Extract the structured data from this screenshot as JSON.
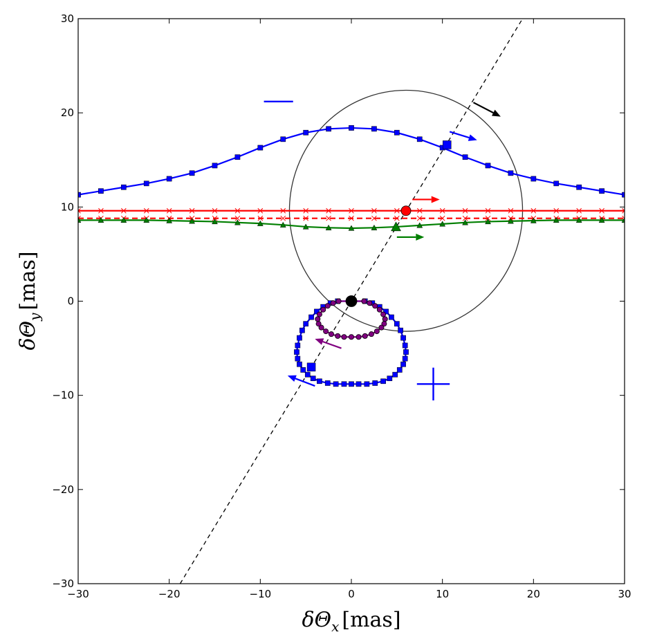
{
  "chart_data": {
    "type": "scatter",
    "title": "",
    "xlabel": "δΘ_x [mas]",
    "ylabel": "δΘ_y [mas]",
    "xlim": [
      -30,
      30
    ],
    "ylim": [
      -30,
      30
    ],
    "xticks": [
      -30,
      -20,
      -10,
      0,
      10,
      20,
      30
    ],
    "yticks": [
      -30,
      -20,
      -10,
      0,
      10,
      20,
      30
    ],
    "tick_labels_x": [
      "−30",
      "−20",
      "−10",
      "0",
      "10",
      "20",
      "30"
    ],
    "tick_labels_y": [
      "−30",
      "−20",
      "−10",
      "0",
      "10",
      "20",
      "30"
    ],
    "xlabel_text": {
      "main": "δΘ",
      "sub": "x",
      "unit": "[mas]"
    },
    "ylabel_text": {
      "main": "δΘ",
      "sub": "y",
      "unit": "[mas]"
    },
    "grid": false,
    "colors": {
      "blue": "#0000ff",
      "red": "#ff0000",
      "green": "#007f00",
      "purple": "#800080",
      "black": "#000000",
      "circle": "#333333"
    },
    "series": [
      {
        "key": "blue_upper",
        "color": "#0000ff",
        "marker": "square",
        "line": "solid",
        "x": [
          -30,
          -27.5,
          -25,
          -22.5,
          -20,
          -17.5,
          -15,
          -12.5,
          -10,
          -7.5,
          -5,
          -2.5,
          0,
          2.5,
          5,
          7.5,
          10,
          12.5,
          15,
          17.5,
          20,
          22.5,
          25,
          27.5,
          30
        ],
        "y": [
          11.3,
          11.7,
          12.1,
          12.5,
          13.0,
          13.6,
          14.4,
          15.3,
          16.3,
          17.2,
          17.9,
          18.3,
          18.4,
          18.3,
          17.9,
          17.2,
          16.3,
          15.3,
          14.4,
          13.6,
          13.0,
          12.5,
          12.1,
          11.7,
          11.3
        ]
      },
      {
        "key": "red_solid",
        "color": "#ff0000",
        "marker": "x",
        "line": "solid",
        "x": [
          -30,
          -27.5,
          -25,
          -22.5,
          -20,
          -17.5,
          -15,
          -12.5,
          -10,
          -7.5,
          -5,
          -2.5,
          0,
          2.5,
          5,
          7.5,
          10,
          12.5,
          15,
          17.5,
          20,
          22.5,
          25,
          27.5,
          30
        ],
        "y": [
          9.6,
          9.6,
          9.6,
          9.6,
          9.6,
          9.6,
          9.6,
          9.6,
          9.6,
          9.6,
          9.6,
          9.6,
          9.6,
          9.6,
          9.6,
          9.6,
          9.6,
          9.6,
          9.6,
          9.6,
          9.6,
          9.6,
          9.6,
          9.6,
          9.6
        ]
      },
      {
        "key": "red_dashed",
        "color": "#ff0000",
        "marker": "x",
        "line": "dashed",
        "x": [
          -30,
          -27.5,
          -25,
          -22.5,
          -20,
          -17.5,
          -15,
          -12.5,
          -10,
          -7.5,
          -5,
          -2.5,
          0,
          2.5,
          5,
          7.5,
          10,
          12.5,
          15,
          17.5,
          20,
          22.5,
          25,
          27.5,
          30
        ],
        "y": [
          8.8,
          8.8,
          8.8,
          8.8,
          8.8,
          8.8,
          8.8,
          8.8,
          8.8,
          8.8,
          8.8,
          8.8,
          8.8,
          8.8,
          8.8,
          8.8,
          8.8,
          8.8,
          8.8,
          8.8,
          8.8,
          8.8,
          8.8,
          8.8,
          8.8
        ]
      },
      {
        "key": "green",
        "color": "#007f00",
        "marker": "triangle",
        "line": "solid",
        "x": [
          -30,
          -27.5,
          -25,
          -22.5,
          -20,
          -17.5,
          -15,
          -12.5,
          -10,
          -7.5,
          -5,
          -2.5,
          0,
          2.5,
          5,
          7.5,
          10,
          12.5,
          15,
          17.5,
          20,
          22.5,
          25,
          27.5,
          30
        ],
        "y": [
          8.6,
          8.6,
          8.6,
          8.6,
          8.55,
          8.5,
          8.45,
          8.35,
          8.25,
          8.1,
          7.9,
          7.8,
          7.75,
          7.8,
          7.9,
          8.05,
          8.2,
          8.35,
          8.45,
          8.5,
          8.55,
          8.6,
          8.6,
          8.6,
          8.6
        ]
      },
      {
        "key": "blue_lower",
        "color": "#0000ff",
        "marker": "square",
        "line": "solid",
        "closed": true,
        "x": [
          1.5,
          2.3,
          3.1,
          3.8,
          4.4,
          5.0,
          5.4,
          5.7,
          5.9,
          6.0,
          5.9,
          5.7,
          5.3,
          4.8,
          4.2,
          3.5,
          2.6,
          1.7,
          0.8,
          0.0,
          -0.8,
          -1.7,
          -2.6,
          -3.5,
          -4.2,
          -4.8,
          -5.3,
          -5.7,
          -5.9,
          -6.0,
          -5.9,
          -5.7,
          -5.4,
          -5.0,
          -4.4,
          -3.8,
          -3.1,
          -2.3,
          -1.5
        ],
        "y": [
          0.0,
          -0.2,
          -0.6,
          -1.1,
          -1.7,
          -2.4,
          -3.1,
          -3.9,
          -4.7,
          -5.4,
          -6.1,
          -6.7,
          -7.3,
          -7.8,
          -8.2,
          -8.5,
          -8.7,
          -8.8,
          -8.8,
          -8.8,
          -8.8,
          -8.8,
          -8.7,
          -8.5,
          -8.2,
          -7.8,
          -7.3,
          -6.7,
          -6.1,
          -5.4,
          -4.7,
          -3.9,
          -3.1,
          -2.4,
          -1.7,
          -1.1,
          -0.6,
          -0.2,
          0.0
        ]
      },
      {
        "key": "purple",
        "color": "#800080",
        "marker": "circle",
        "line": "solid",
        "closed": true,
        "x": [
          1.4,
          2.0,
          2.6,
          3.1,
          3.5,
          3.7,
          3.6,
          3.3,
          2.8,
          2.2,
          1.5,
          0.8,
          0.0,
          -0.8,
          -1.5,
          -2.2,
          -2.8,
          -3.3,
          -3.6,
          -3.7,
          -3.5,
          -3.1,
          -2.6,
          -2.0,
          -1.4
        ],
        "y": [
          0.0,
          -0.2,
          -0.5,
          -0.9,
          -1.4,
          -1.9,
          -2.4,
          -2.8,
          -3.2,
          -3.5,
          -3.7,
          -3.8,
          -3.8,
          -3.8,
          -3.7,
          -3.5,
          -3.2,
          -2.8,
          -2.4,
          -1.9,
          -1.4,
          -0.9,
          -0.5,
          -0.2,
          0.0
        ]
      }
    ],
    "einstein_ring": {
      "cx": 6,
      "cy": 9.6,
      "r": 12.8,
      "color": "#333333"
    },
    "lens_axis_line": {
      "x1": -18.8,
      "y1": -30,
      "x2": 18.8,
      "y2": 30,
      "color": "#000000",
      "dashed": true
    },
    "special_points": [
      {
        "key": "lens",
        "x": 0,
        "y": 0,
        "color": "#000000",
        "marker": "circle",
        "size": 8
      },
      {
        "key": "source",
        "x": 6,
        "y": 9.6,
        "color": "#ff0000",
        "marker": "circle",
        "size": 7
      },
      {
        "key": "image-plus",
        "x": 10.5,
        "y": 16.6,
        "color": "#0000ff",
        "marker": "square",
        "size": 6
      },
      {
        "key": "image-green",
        "x": 4.9,
        "y": 7.9,
        "color": "#007f00",
        "marker": "triangle",
        "size": 7
      },
      {
        "key": "image-minus",
        "x": -4.4,
        "y": -7.0,
        "color": "#0000ff",
        "marker": "square",
        "size": 6
      }
    ],
    "arrows": [
      {
        "key": "black",
        "x1": 13.4,
        "y1": 21.1,
        "x2": 16.4,
        "y2": 19.6,
        "color": "#000000"
      },
      {
        "key": "blue-upper",
        "x1": 10.8,
        "y1": 18.0,
        "x2": 13.8,
        "y2": 17.1,
        "color": "#0000ff"
      },
      {
        "key": "red",
        "x1": 6.7,
        "y1": 10.8,
        "x2": 9.7,
        "y2": 10.8,
        "color": "#ff0000"
      },
      {
        "key": "green",
        "x1": 5.0,
        "y1": 6.8,
        "x2": 8.0,
        "y2": 6.8,
        "color": "#007f00"
      },
      {
        "key": "purple",
        "x1": -1.1,
        "y1": -5.0,
        "x2": -4.0,
        "y2": -4.0,
        "color": "#800080"
      },
      {
        "key": "blue-lower",
        "x1": -4.0,
        "y1": -9.0,
        "x2": -7.0,
        "y2": -7.9,
        "color": "#0000ff"
      }
    ],
    "sign_markers": [
      {
        "key": "minus",
        "symbol": "minus",
        "x": -8.0,
        "y": 21.2,
        "half_width": 1.6,
        "color": "#0000ff"
      },
      {
        "key": "plus",
        "symbol": "plus",
        "x": 9.0,
        "y": -8.8,
        "half_width": 1.8,
        "color": "#0000ff"
      }
    ]
  }
}
